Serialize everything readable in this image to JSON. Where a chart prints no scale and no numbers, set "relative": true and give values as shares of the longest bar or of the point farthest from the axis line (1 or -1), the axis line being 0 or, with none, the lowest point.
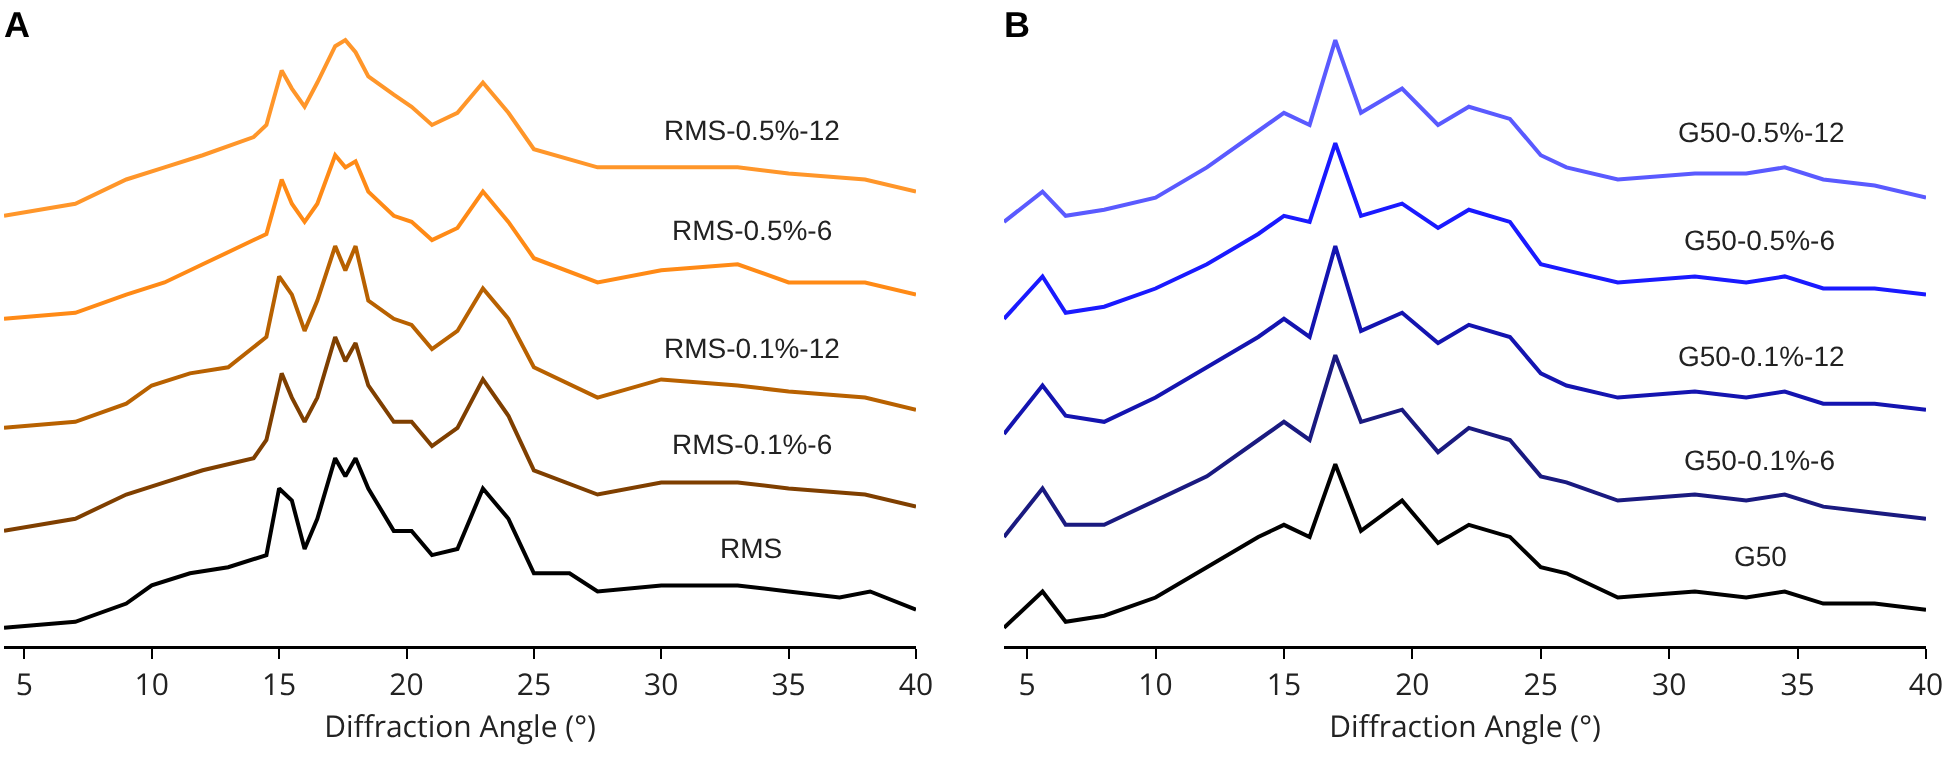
{
  "chart_data": [
    {
      "type": "line",
      "title": "A",
      "xlabel": "Diffraction Angle (°)",
      "relative": true,
      "legend": false,
      "xlim": [
        4.2,
        40
      ],
      "xticks": [
        5,
        10,
        15,
        20,
        25,
        30,
        35,
        40
      ],
      "series": [
        {
          "name": "RMS",
          "color": "#000000",
          "x": [
            4.2,
            7,
            9,
            10,
            11.5,
            13,
            14.5,
            15,
            15.5,
            16,
            16.5,
            17.2,
            17.6,
            18,
            18.5,
            19.5,
            20.2,
            21,
            22,
            23,
            24,
            25,
            26.4,
            27.5,
            30,
            33,
            35,
            37,
            38.2,
            40
          ],
          "values": [
            0.03,
            0.04,
            0.07,
            0.1,
            0.12,
            0.13,
            0.15,
            0.26,
            0.24,
            0.16,
            0.21,
            0.31,
            0.28,
            0.31,
            0.26,
            0.19,
            0.19,
            0.15,
            0.16,
            0.26,
            0.21,
            0.12,
            0.12,
            0.09,
            0.1,
            0.1,
            0.09,
            0.08,
            0.09,
            0.06
          ]
        },
        {
          "name": "RMS-0.1%-6",
          "color": "#7f3f00",
          "x": [
            4.2,
            7,
            9,
            10.5,
            12,
            14,
            14.5,
            15.1,
            15.5,
            16,
            16.5,
            17.2,
            17.6,
            18,
            18.5,
            19.5,
            20.2,
            21,
            22,
            23,
            24,
            25,
            27.5,
            30,
            33,
            35,
            38,
            40
          ],
          "values": [
            0.19,
            0.21,
            0.25,
            0.27,
            0.29,
            0.31,
            0.34,
            0.45,
            0.41,
            0.37,
            0.41,
            0.51,
            0.47,
            0.5,
            0.43,
            0.37,
            0.37,
            0.33,
            0.36,
            0.44,
            0.38,
            0.29,
            0.25,
            0.27,
            0.27,
            0.26,
            0.25,
            0.23
          ]
        },
        {
          "name": "RMS-0.1%-12",
          "color": "#b86100",
          "x": [
            4.2,
            7,
            9,
            10,
            11.5,
            13,
            14.5,
            15,
            15.5,
            16,
            16.5,
            17.2,
            17.6,
            18,
            18.5,
            19.5,
            20.2,
            21,
            22,
            23,
            24,
            25,
            27.5,
            30,
            33,
            35,
            38,
            40
          ],
          "values": [
            0.36,
            0.37,
            0.4,
            0.43,
            0.45,
            0.46,
            0.51,
            0.61,
            0.58,
            0.52,
            0.57,
            0.66,
            0.62,
            0.66,
            0.57,
            0.54,
            0.53,
            0.49,
            0.52,
            0.59,
            0.54,
            0.46,
            0.41,
            0.44,
            0.43,
            0.42,
            0.41,
            0.39
          ]
        },
        {
          "name": "RMS-0.5%-6",
          "color": "#ff8a16",
          "x": [
            4.2,
            7,
            9,
            10.5,
            12,
            14,
            14.5,
            15.1,
            15.5,
            16,
            16.5,
            17.2,
            17.6,
            18,
            18.5,
            19.5,
            20.2,
            21,
            22,
            23,
            24,
            25,
            27.5,
            30,
            33,
            35,
            38,
            40
          ],
          "values": [
            0.54,
            0.55,
            0.58,
            0.6,
            0.63,
            0.67,
            0.68,
            0.77,
            0.73,
            0.7,
            0.73,
            0.81,
            0.79,
            0.8,
            0.75,
            0.71,
            0.7,
            0.67,
            0.69,
            0.75,
            0.7,
            0.64,
            0.6,
            0.62,
            0.63,
            0.6,
            0.6,
            0.58
          ]
        },
        {
          "name": "RMS-0.5%-12",
          "color": "#ff962a",
          "x": [
            4.2,
            7,
            9,
            10.5,
            12,
            14,
            14.5,
            15.1,
            15.5,
            16,
            16.5,
            17.2,
            17.6,
            18,
            18.5,
            19.5,
            20.2,
            21,
            22,
            23,
            24,
            25,
            27.5,
            30,
            33,
            35,
            38,
            40
          ],
          "values": [
            0.71,
            0.73,
            0.77,
            0.79,
            0.81,
            0.84,
            0.86,
            0.95,
            0.92,
            0.89,
            0.93,
            0.99,
            1.0,
            0.98,
            0.94,
            0.91,
            0.89,
            0.86,
            0.88,
            0.93,
            0.88,
            0.82,
            0.79,
            0.79,
            0.79,
            0.78,
            0.77,
            0.75
          ]
        }
      ]
    },
    {
      "type": "line",
      "title": "B",
      "xlabel": "Diffraction Angle (°)",
      "relative": true,
      "legend": false,
      "xlim": [
        4.1,
        40
      ],
      "xticks": [
        5,
        10,
        15,
        20,
        25,
        30,
        35,
        40
      ],
      "x": [
        4.1,
        5.6,
        6.5,
        8,
        10,
        12,
        14,
        15,
        16,
        17,
        18,
        19.6,
        21,
        22.2,
        23.8,
        25,
        26,
        28,
        31,
        33,
        34.5,
        36,
        38,
        40
      ],
      "series": [
        {
          "name": "G50",
          "color": "#000000",
          "values": [
            0.03,
            0.09,
            0.04,
            0.05,
            0.08,
            0.13,
            0.18,
            0.2,
            0.18,
            0.3,
            0.19,
            0.24,
            0.17,
            0.2,
            0.18,
            0.13,
            0.12,
            0.08,
            0.09,
            0.08,
            0.09,
            0.07,
            0.07,
            0.06
          ]
        },
        {
          "name": "G50-0.1%-6",
          "color": "#1a1a80",
          "values": [
            0.18,
            0.26,
            0.2,
            0.2,
            0.24,
            0.28,
            0.34,
            0.37,
            0.34,
            0.48,
            0.37,
            0.39,
            0.32,
            0.36,
            0.34,
            0.28,
            0.27,
            0.24,
            0.25,
            0.24,
            0.25,
            0.23,
            0.22,
            0.21
          ]
        },
        {
          "name": "G50-0.1%-12",
          "color": "#1414b0",
          "values": [
            0.35,
            0.43,
            0.38,
            0.37,
            0.41,
            0.46,
            0.51,
            0.54,
            0.51,
            0.66,
            0.52,
            0.55,
            0.5,
            0.53,
            0.51,
            0.45,
            0.43,
            0.41,
            0.42,
            0.41,
            0.42,
            0.4,
            0.4,
            0.39
          ]
        },
        {
          "name": "G50-0.5%-6",
          "color": "#1a1aff",
          "values": [
            0.54,
            0.61,
            0.55,
            0.56,
            0.59,
            0.63,
            0.68,
            0.71,
            0.7,
            0.83,
            0.71,
            0.73,
            0.69,
            0.72,
            0.7,
            0.63,
            0.62,
            0.6,
            0.61,
            0.6,
            0.61,
            0.59,
            0.59,
            0.58
          ]
        },
        {
          "name": "G50-0.5%-12",
          "color": "#5a5aff",
          "values": [
            0.7,
            0.75,
            0.71,
            0.72,
            0.74,
            0.79,
            0.85,
            0.88,
            0.86,
            1.0,
            0.88,
            0.92,
            0.86,
            0.89,
            0.87,
            0.81,
            0.79,
            0.77,
            0.78,
            0.78,
            0.79,
            0.77,
            0.76,
            0.74
          ]
        }
      ]
    }
  ]
}
